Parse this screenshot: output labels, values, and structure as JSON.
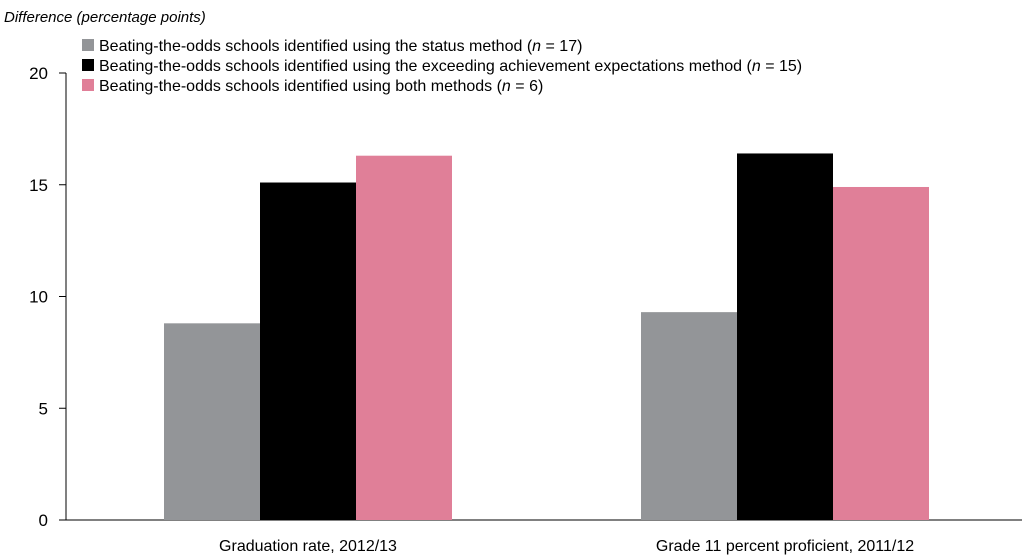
{
  "chart_data": {
    "type": "bar",
    "ylabel": "Difference (percentage points)",
    "xlabel": "",
    "ylim": [
      0,
      20
    ],
    "yticks": [
      0,
      5,
      10,
      15,
      20
    ],
    "grid": false,
    "legend_position": "top",
    "categories": [
      "Graduation rate, 2012/13",
      "Grade 11 percent proficient, 2011/12"
    ],
    "series": [
      {
        "name": "Beating-the-odds schools identified using the status method (n = 17)",
        "legend": {
          "pre": "Beating-the-odds schools identified using the status method (",
          "n": "n",
          "post": " = 17)"
        },
        "color": "#939598",
        "values": [
          8.8,
          9.3
        ]
      },
      {
        "name": "Beating-the-odds schools identified using the exceeding achievement expectations method (n = 15)",
        "legend": {
          "pre": "Beating-the-odds schools identified using the exceeding achievement expectations method (",
          "n": "n",
          "post": " = 15)"
        },
        "color": "#000000",
        "values": [
          15.1,
          16.4
        ]
      },
      {
        "name": "Beating-the-odds schools identified using both methods (n = 6)",
        "legend": {
          "pre": "Beating-the-odds schools identified using both methods (",
          "n": "n",
          "post": " = 6)"
        },
        "color": "#e07f98",
        "values": [
          16.3,
          14.9
        ]
      }
    ]
  }
}
